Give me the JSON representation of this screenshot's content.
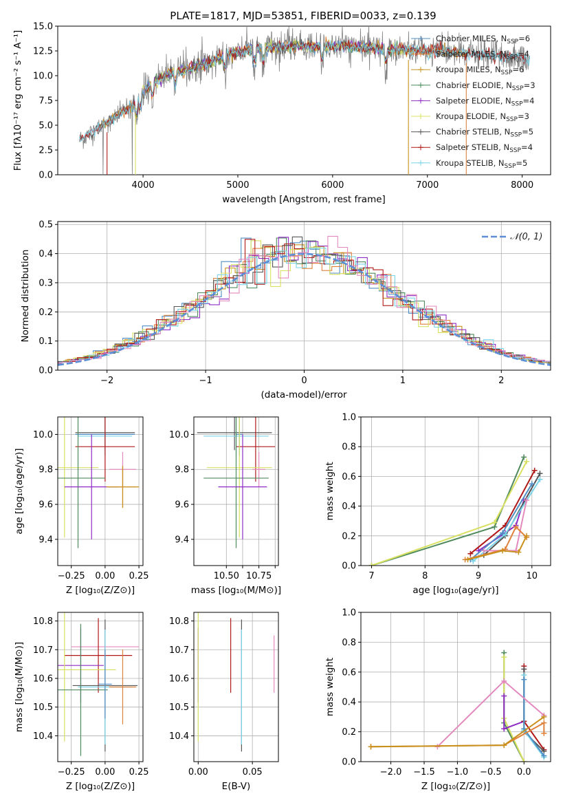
{
  "colors": {
    "chabrier_miles": "#4f8ec4",
    "salpeter_miles": "#e0813a",
    "kroupa_miles": "#c8901c",
    "chabrier_elodie": "#4f8a5c",
    "salpeter_elodie": "#8e2bc4",
    "kroupa_elodie": "#d8e060",
    "chabrier_stelib": "#555555",
    "salpeter_stelib": "#b01818",
    "kroupa_stelib": "#7ad4e8",
    "gauss": "#5b8ed6",
    "pink": "#e389be",
    "grid": "#b0b0b0"
  },
  "chart_data": [
    {
      "id": "spectrum",
      "type": "line",
      "title": "PLATE=1817, MJD=53851, FIBERID=0033, z=0.139",
      "xlabel": "wavelength [Angstrom, rest frame]",
      "ylabel": "Flux [fλ10⁻¹⁷ erg cm⁻² s⁻¹ A⁻¹]",
      "xlim": [
        3100,
        8300
      ],
      "ylim": [
        0,
        15
      ],
      "xticks": [
        "4000",
        "5000",
        "6000",
        "7000",
        "8000"
      ],
      "yticks": [
        "0.0",
        "2.5",
        "5.0",
        "7.5",
        "10.0",
        "12.5",
        "15.0"
      ],
      "grid": false,
      "legend_position": "top-right",
      "series": [
        {
          "name": "Chabrier MILES, N",
          "sub": "SSP",
          "n": "=6"
        },
        {
          "name": "Salpeter MILES, N",
          "sub": "SSP",
          "n": "=4"
        },
        {
          "name": "Kroupa MILES, N",
          "sub": "SSP",
          "n": "=6"
        },
        {
          "name": "Chabrier ELODIE, N",
          "sub": "SSP",
          "n": "=3"
        },
        {
          "name": "Salpeter ELODIE, N",
          "sub": "SSP",
          "n": "=4"
        },
        {
          "name": "Kroupa ELODIE, N",
          "sub": "SSP",
          "n": "=3"
        },
        {
          "name": "Chabrier STELIB, N",
          "sub": "SSP",
          "n": "=5"
        },
        {
          "name": "Salpeter STELIB, N",
          "sub": "SSP",
          "n": "=4"
        },
        {
          "name": "Kroupa STELIB, N",
          "sub": "SSP",
          "n": "=5"
        }
      ],
      "continuum": {
        "x": [
          3330,
          3500,
          3700,
          3900,
          4000,
          4100,
          4300,
          4500,
          4700,
          4850,
          5000,
          5200,
          5400,
          5600,
          5800,
          6000,
          6200,
          6400,
          6600,
          6800,
          7000,
          7200,
          7400,
          7600,
          7800,
          8000,
          8080
        ],
        "y": [
          3.5,
          4.5,
          5.8,
          7.0,
          8.3,
          9.3,
          10.3,
          10.8,
          11.3,
          12.0,
          12.4,
          12.8,
          12.9,
          13.0,
          12.9,
          13.0,
          12.9,
          12.8,
          12.6,
          12.6,
          12.5,
          12.4,
          12.3,
          12.1,
          11.9,
          11.7,
          11.5
        ]
      }
    },
    {
      "id": "residuals",
      "type": "histogram",
      "xlabel": "(data-model)/error",
      "ylabel": "Normed distribution",
      "xlim": [
        -2.5,
        2.5
      ],
      "ylim": [
        0,
        0.51
      ],
      "xticks": [
        "−2",
        "−1",
        "0",
        "1",
        "2"
      ],
      "yticks": [
        "0.0",
        "0.1",
        "0.2",
        "0.3",
        "0.4",
        "0.5"
      ],
      "grid": true,
      "legend_position": "top-right",
      "legend": "𝒩(0, 1)",
      "bin_width": 0.1
    },
    {
      "id": "age_vs_Z",
      "type": "errorbar",
      "xlabel": "Z [log₁₀(Z/Z⊙)]",
      "ylabel": "age  [log₁₀(age/yr)]",
      "xlim": [
        -0.35,
        0.28
      ],
      "ylim": [
        9.25,
        10.1
      ],
      "xticks": [
        -0.25,
        0.0,
        0.25
      ],
      "xticklabels": [
        "−0.25",
        "0.00",
        "0.25"
      ],
      "yticks": [
        9.4,
        9.6,
        9.8,
        10.0
      ],
      "yticklabels": [
        "9.4",
        "9.6",
        "9.8",
        "10.0"
      ],
      "grid": true,
      "points": [
        {
          "s": "chabrier_miles",
          "x": 0.0,
          "xe": 0.22,
          "y": 10.0,
          "ye": 0.12
        },
        {
          "s": "chabrier_stelib",
          "x": 0.0,
          "xe": 0.22,
          "y": 10.01,
          "ye": 0.1
        },
        {
          "s": "kroupa_stelib",
          "x": 0.0,
          "xe": 0.2,
          "y": 9.99,
          "ye": 0.11
        },
        {
          "s": "salpeter_stelib",
          "x": 0.0,
          "xe": 0.22,
          "y": 9.93,
          "ye": 0.2
        },
        {
          "s": "pink",
          "x": 0.13,
          "xe": 0.1,
          "y": 9.8,
          "ye": 0.1
        },
        {
          "s": "kroupa_elodie",
          "x": -0.3,
          "xe": 0.25,
          "y": 9.81,
          "ye": 0.4
        },
        {
          "s": "chabrier_elodie",
          "x": -0.2,
          "xe": 0.2,
          "y": 9.75,
          "ye": 0.4
        },
        {
          "s": "salpeter_elodie",
          "x": -0.1,
          "xe": 0.2,
          "y": 9.7,
          "ye": 0.3
        },
        {
          "s": "salpeter_miles",
          "x": 0.13,
          "xe": 0.1,
          "y": 9.7,
          "ye": 0.12
        },
        {
          "s": "kroupa_miles",
          "x": 0.13,
          "xe": 0.12,
          "y": 9.7,
          "ye": 0.12
        }
      ]
    },
    {
      "id": "age_vs_mass",
      "type": "errorbar",
      "xlabel": "mass [log₁₀(M/M⊙)]",
      "ylabel": "",
      "xlim": [
        10.3,
        10.82
      ],
      "ylim": [
        9.25,
        10.1
      ],
      "xticks": [
        10.5,
        10.6,
        10.7,
        10.8
      ],
      "xticklabels": [
        "10.50",
        "",
        "10.75",
        ""
      ],
      "yticks": [
        9.4,
        9.6,
        9.8,
        10.0
      ],
      "yticklabels": [
        "9.4",
        "9.6",
        "9.8",
        "10.0"
      ],
      "grid": true,
      "points": [
        {
          "s": "chabrier_stelib",
          "x": 10.55,
          "xe": 0.23,
          "y": 10.01,
          "ye": 0.1
        },
        {
          "s": "kroupa_stelib",
          "x": 10.56,
          "xe": 0.2,
          "y": 9.99,
          "ye": 0.11
        },
        {
          "s": "salpeter_stelib",
          "x": 10.68,
          "xe": 0.12,
          "y": 9.93,
          "ye": 0.2
        },
        {
          "s": "chabrier_miles",
          "x": 10.58,
          "xe": 0.02,
          "y": 10.0,
          "ye": 0.12
        },
        {
          "s": "pink",
          "x": 10.7,
          "xe": 0.04,
          "y": 9.8,
          "ye": 0.1
        },
        {
          "s": "kroupa_elodie",
          "x": 10.58,
          "xe": 0.2,
          "y": 9.81,
          "ye": 0.4
        },
        {
          "s": "chabrier_elodie",
          "x": 10.56,
          "xe": 0.2,
          "y": 9.75,
          "ye": 0.4
        },
        {
          "s": "salpeter_elodie",
          "x": 10.6,
          "xe": 0.15,
          "y": 9.7,
          "ye": 0.3
        }
      ]
    },
    {
      "id": "massweight_vs_age",
      "type": "line",
      "xlabel": "age  [log₁₀(age/yr)]",
      "ylabel": "mass weight",
      "xlim": [
        6.8,
        10.35
      ],
      "ylim": [
        0,
        1.0
      ],
      "xticks": [
        7,
        8,
        9,
        10
      ],
      "xticklabels": [
        "7",
        "8",
        "9",
        "10"
      ],
      "yticks": [
        0,
        0.2,
        0.4,
        0.6,
        0.8,
        1.0
      ],
      "yticklabels": [
        "0.0",
        "0.2",
        "0.4",
        "0.6",
        "0.8",
        "1.0"
      ],
      "grid": true,
      "series": [
        {
          "s": "chabrier_elodie",
          "x": [
            7.0,
            9.3,
            9.85
          ],
          "y": [
            0.0,
            0.26,
            0.73
          ]
        },
        {
          "s": "kroupa_elodie",
          "x": [
            7.0,
            9.3,
            9.9
          ],
          "y": [
            0.0,
            0.29,
            0.7
          ]
        },
        {
          "s": "salpeter_elodie",
          "x": [
            9.0,
            9.5,
            9.7,
            9.85
          ],
          "y": [
            0.1,
            0.22,
            0.27,
            0.44
          ]
        },
        {
          "s": "salpeter_stelib",
          "x": [
            8.85,
            9.5,
            10.05
          ],
          "y": [
            0.08,
            0.27,
            0.64
          ]
        },
        {
          "s": "chabrier_stelib",
          "x": [
            9.1,
            9.5,
            10.15
          ],
          "y": [
            0.07,
            0.2,
            0.62
          ]
        },
        {
          "s": "kroupa_stelib",
          "x": [
            8.9,
            9.5,
            10.15
          ],
          "y": [
            0.03,
            0.21,
            0.58
          ]
        },
        {
          "s": "chabrier_miles",
          "x": [
            8.85,
            9.45,
            10.0
          ],
          "y": [
            0.04,
            0.22,
            0.55
          ]
        },
        {
          "s": "pink",
          "x": [
            9.1,
            9.7,
            9.9
          ],
          "y": [
            0.1,
            0.1,
            0.44
          ]
        },
        {
          "s": "salpeter_miles",
          "x": [
            8.75,
            9.5,
            9.7,
            9.9
          ],
          "y": [
            0.04,
            0.11,
            0.26,
            0.19
          ]
        },
        {
          "s": "kroupa_miles",
          "x": [
            8.8,
            9.45,
            9.75,
            9.9
          ],
          "y": [
            0.04,
            0.1,
            0.09,
            0.2
          ]
        }
      ]
    },
    {
      "id": "mass_vs_Z",
      "type": "errorbar",
      "xlabel": "Z [log₁₀(Z/Z⊙)]",
      "ylabel": "mass [log₁₀(M/M⊙)]",
      "xlim": [
        -0.35,
        0.28
      ],
      "ylim": [
        10.31,
        10.83
      ],
      "xticks": [
        -0.25,
        0.0,
        0.25
      ],
      "xticklabels": [
        "−0.25",
        "0.00",
        "0.25"
      ],
      "yticks": [
        10.4,
        10.5,
        10.6,
        10.7,
        10.8
      ],
      "yticklabels": [
        "10.4",
        "10.5",
        "10.6",
        "10.7",
        "10.8"
      ],
      "grid": true,
      "points": [
        {
          "s": "pink",
          "x": 0.0,
          "xe": 0.25,
          "y": 10.71,
          "ye": 0.07
        },
        {
          "s": "salpeter_stelib",
          "x": -0.05,
          "xe": 0.25,
          "y": 10.68,
          "ye": 0.13
        },
        {
          "s": "salpeter_elodie",
          "x": -0.18,
          "xe": 0.17,
          "y": 10.645,
          "ye": 0.13
        },
        {
          "s": "kroupa_elodie",
          "x": -0.3,
          "xe": 0.38,
          "y": 10.63,
          "ye": 0.25
        },
        {
          "s": "chabrier_stelib",
          "x": 0.0,
          "xe": 0.24,
          "y": 10.575,
          "ye": 0.23
        },
        {
          "s": "kroupa_stelib",
          "x": 0.0,
          "xe": 0.2,
          "y": 10.57,
          "ye": 0.2
        },
        {
          "s": "chabrier_elodie",
          "x": -0.18,
          "xe": 0.2,
          "y": 10.56,
          "ye": 0.23
        },
        {
          "s": "salpeter_miles",
          "x": 0.13,
          "xe": 0.1,
          "y": 10.57,
          "ye": 0.13
        },
        {
          "s": "chabrier_miles",
          "x": 0.0,
          "xe": 0.05,
          "y": 10.58,
          "ye": 0.12
        }
      ]
    },
    {
      "id": "mass_vs_ebv",
      "type": "errorbar",
      "xlabel": "E(B-V)",
      "ylabel": "",
      "xlim": [
        -0.004,
        0.074
      ],
      "ylim": [
        10.31,
        10.83
      ],
      "xticks": [
        0.0,
        0.05
      ],
      "xticklabels": [
        "0.00",
        "0.05"
      ],
      "yticks": [
        10.4,
        10.5,
        10.6,
        10.7,
        10.8
      ],
      "yticklabels": [
        "10.4",
        "10.5",
        "10.6",
        "10.7",
        "10.8"
      ],
      "grid": true,
      "points": [
        {
          "s": "salpeter_elodie",
          "x": 0.0,
          "xe": 0.0,
          "y": 10.645,
          "ye": 0.13
        },
        {
          "s": "kroupa_elodie",
          "x": 0.0,
          "xe": 0.0,
          "y": 10.63,
          "ye": 0.25
        },
        {
          "s": "salpeter_stelib",
          "x": 0.03,
          "xe": 0.0,
          "y": 10.68,
          "ye": 0.13
        },
        {
          "s": "chabrier_stelib",
          "x": 0.04,
          "xe": 0.0,
          "y": 10.575,
          "ye": 0.23
        },
        {
          "s": "kroupa_stelib",
          "x": 0.04,
          "xe": 0.0,
          "y": 10.57,
          "ye": 0.2
        },
        {
          "s": "pink",
          "x": 0.07,
          "xe": 0.0,
          "y": 10.65,
          "ye": 0.1
        }
      ]
    },
    {
      "id": "massweight_vs_Z",
      "type": "line",
      "xlabel": "Z [log₁₀(Z/Z⊙)]",
      "ylabel": "mass weight",
      "xlim": [
        -2.45,
        0.4
      ],
      "ylim": [
        0,
        1.0
      ],
      "xticks": [
        -2.0,
        -1.5,
        -1.0,
        -0.5,
        0.0
      ],
      "xticklabels": [
        "−2.0",
        "−1.5",
        "−1.0",
        "−0.5",
        "0.0"
      ],
      "yticks": [
        0,
        0.2,
        0.4,
        0.6,
        0.8,
        1.0
      ],
      "yticklabels": [
        "0.0",
        "0.2",
        "0.4",
        "0.6",
        "0.8",
        "1.0"
      ],
      "grid": true,
      "series": [
        {
          "s": "chabrier_elodie",
          "x": [
            -0.3,
            -0.3,
            0.0
          ],
          "y": [
            0.73,
            0.26,
            0.0
          ]
        },
        {
          "s": "kroupa_elodie",
          "x": [
            -0.3,
            -0.3,
            0.0
          ],
          "y": [
            0.7,
            0.29,
            0.0
          ]
        },
        {
          "s": "salpeter_elodie",
          "x": [
            -0.3,
            -0.3,
            0.0
          ],
          "y": [
            0.44,
            0.22,
            0.27
          ]
        },
        {
          "s": "salpeter_stelib",
          "x": [
            0.0,
            0.0,
            0.3
          ],
          "y": [
            0.64,
            0.27,
            0.08
          ]
        },
        {
          "s": "chabrier_stelib",
          "x": [
            0.0,
            0.0,
            0.3
          ],
          "y": [
            0.62,
            0.2,
            0.07
          ]
        },
        {
          "s": "kroupa_stelib",
          "x": [
            0.0,
            0.0,
            0.3
          ],
          "y": [
            0.58,
            0.21,
            0.03
          ]
        },
        {
          "s": "chabrier_miles",
          "x": [
            0.0,
            0.0,
            0.3
          ],
          "y": [
            0.55,
            0.22,
            0.04
          ]
        },
        {
          "s": "pink",
          "x": [
            -1.3,
            -0.3,
            0.3
          ],
          "y": [
            0.1,
            0.54,
            0.31
          ]
        },
        {
          "s": "salpeter_miles",
          "x": [
            -2.3,
            -0.3,
            0.3,
            0.3
          ],
          "y": [
            0.1,
            0.11,
            0.26,
            0.19
          ]
        },
        {
          "s": "kroupa_miles",
          "x": [
            -2.3,
            -0.3,
            0.3
          ],
          "y": [
            0.1,
            0.11,
            0.3
          ]
        }
      ]
    }
  ]
}
